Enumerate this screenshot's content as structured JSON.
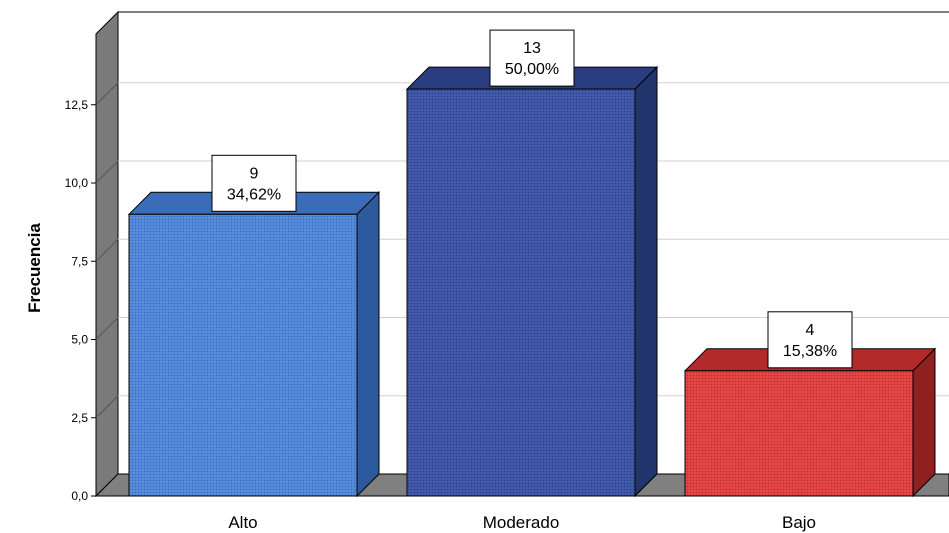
{
  "chart_data": {
    "type": "bar",
    "categories": [
      "Alto",
      "Moderado",
      "Bajo"
    ],
    "values": [
      9,
      13,
      4
    ],
    "percentages": [
      "34,62%",
      "50,00%",
      "15,38%"
    ],
    "ylabel": "Frecuencia",
    "ylim": [
      0,
      14
    ],
    "yticks": [
      {
        "value": 0,
        "label": "0,0"
      },
      {
        "value": 2.5,
        "label": "2,5"
      },
      {
        "value": 5,
        "label": "5,0"
      },
      {
        "value": 7.5,
        "label": "7,5"
      },
      {
        "value": 10,
        "label": "10,0"
      },
      {
        "value": 12.5,
        "label": "12,5"
      }
    ],
    "grid": true,
    "colors": [
      {
        "front": "#4f86da",
        "top": "#3a6cb8",
        "side": "#2d5a9c"
      },
      {
        "front": "#3a53a4",
        "top": "#2a3d80",
        "side": "#22346c"
      },
      {
        "front": "#e0403f",
        "top": "#b22a2a",
        "side": "#8f2020"
      }
    ]
  }
}
